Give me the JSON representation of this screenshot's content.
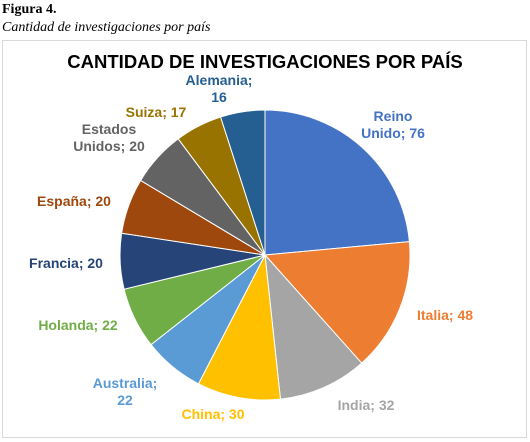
{
  "figure": {
    "number": "Figura 4.",
    "caption": "Cantidad de investigaciones por país"
  },
  "chart_data": {
    "type": "pie",
    "title": "CANTIDAD DE INVESTIGACIONES POR PAÍS",
    "slices": [
      {
        "label": "Reino Unido",
        "value": 76,
        "color": "#4472C4"
      },
      {
        "label": "Italia",
        "value": 48,
        "color": "#ED7D31"
      },
      {
        "label": "India",
        "value": 32,
        "color": "#A5A5A5"
      },
      {
        "label": "China",
        "value": 30,
        "color": "#FFC000"
      },
      {
        "label": "Australia",
        "value": 22,
        "color": "#5B9BD5"
      },
      {
        "label": "Holanda",
        "value": 22,
        "color": "#70AD47"
      },
      {
        "label": "Francia",
        "value": 20,
        "color": "#264478"
      },
      {
        "label": "España",
        "value": 20,
        "color": "#9E480E"
      },
      {
        "label": "Estados Unidos",
        "value": 20,
        "color": "#636363"
      },
      {
        "label": "Suiza",
        "value": 17,
        "color": "#997300"
      },
      {
        "label": "Alemania",
        "value": 16,
        "color": "#255E91"
      }
    ],
    "data_labels": [
      {
        "lines": [
          "Reino",
          "Unido; 76"
        ]
      },
      {
        "lines": [
          "Italia; 48"
        ]
      },
      {
        "lines": [
          "India; 32"
        ]
      },
      {
        "lines": [
          "China; 30"
        ]
      },
      {
        "lines": [
          "Australia;",
          "22"
        ]
      },
      {
        "lines": [
          "Holanda; 22"
        ]
      },
      {
        "lines": [
          "Francia; 20"
        ]
      },
      {
        "lines": [
          "España; 20"
        ]
      },
      {
        "lines": [
          "Estados",
          "Unidos; 20"
        ]
      },
      {
        "lines": [
          "Suiza; 17"
        ]
      },
      {
        "lines": [
          "Alemania;",
          "16"
        ]
      }
    ],
    "legend": "none"
  }
}
